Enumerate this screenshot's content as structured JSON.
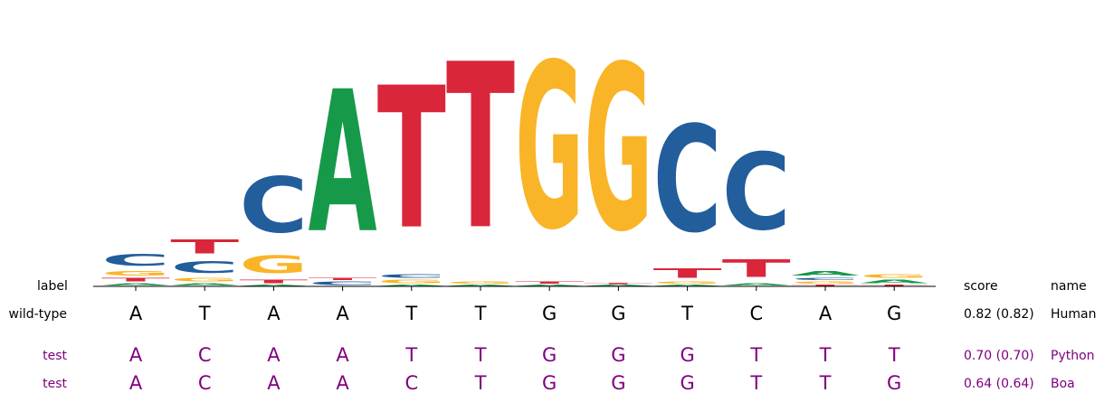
{
  "colors": {
    "A": "#17994a",
    "C": "#225d9c",
    "G": "#f9b428",
    "T": "#da263a",
    "test": "#800080"
  },
  "headers": {
    "label": "label",
    "score": "score",
    "name": "name"
  },
  "logo": {
    "positions": [
      [
        [
          "A",
          0.02
        ],
        [
          "T",
          0.03
        ],
        [
          "G",
          0.04
        ],
        [
          "C",
          0.1
        ]
      ],
      [
        [
          "A",
          0.02
        ],
        [
          "G",
          0.03
        ],
        [
          "C",
          0.1
        ],
        [
          "T",
          0.12
        ]
      ],
      [
        [
          "A",
          0.01
        ],
        [
          "T",
          0.03
        ],
        [
          "G",
          0.15
        ],
        [
          "C",
          0.47
        ]
      ],
      [
        [
          "C",
          0.03
        ],
        [
          "T",
          0.02
        ],
        [
          "A",
          1.2
        ]
      ],
      [
        [
          "A",
          0.01
        ],
        [
          "G",
          0.03
        ],
        [
          "C",
          0.03
        ],
        [
          "T",
          1.2
        ]
      ],
      [
        [
          "A",
          0.01
        ],
        [
          "G",
          0.02
        ],
        [
          "T",
          1.4
        ]
      ],
      [
        [
          "A",
          0.01
        ],
        [
          "T",
          0.02
        ],
        [
          "G",
          1.4
        ]
      ],
      [
        [
          "A",
          0.01
        ],
        [
          "T",
          0.01
        ],
        [
          "G",
          1.4
        ]
      ],
      [
        [
          "A",
          0.01
        ],
        [
          "G",
          0.02
        ],
        [
          "T",
          0.08
        ],
        [
          "C",
          0.9
        ]
      ],
      [
        [
          "A",
          0.02
        ],
        [
          "T",
          0.15
        ],
        [
          "C",
          0.65
        ]
      ],
      [
        [
          "T",
          0.01
        ],
        [
          "G",
          0.02
        ],
        [
          "C",
          0.02
        ],
        [
          "A",
          0.04
        ]
      ],
      [
        [
          "T",
          0.01
        ],
        [
          "A",
          0.03
        ],
        [
          "G",
          0.03
        ]
      ]
    ]
  },
  "rows": [
    {
      "label": "wild-type",
      "sequence": [
        "A",
        "T",
        "A",
        "A",
        "T",
        "T",
        "G",
        "G",
        "T",
        "C",
        "A",
        "G"
      ],
      "score": "0.82 (0.82)",
      "name": "Human",
      "test": false
    },
    {
      "label": "test",
      "sequence": [
        "A",
        "C",
        "A",
        "A",
        "T",
        "T",
        "G",
        "G",
        "G",
        "T",
        "T",
        "T"
      ],
      "score": "0.70 (0.70)",
      "name": "Python",
      "test": true
    },
    {
      "label": "test",
      "sequence": [
        "A",
        "C",
        "A",
        "A",
        "C",
        "T",
        "G",
        "G",
        "G",
        "T",
        "T",
        "G"
      ],
      "score": "0.64 (0.64)",
      "name": "Boa",
      "test": true
    }
  ]
}
